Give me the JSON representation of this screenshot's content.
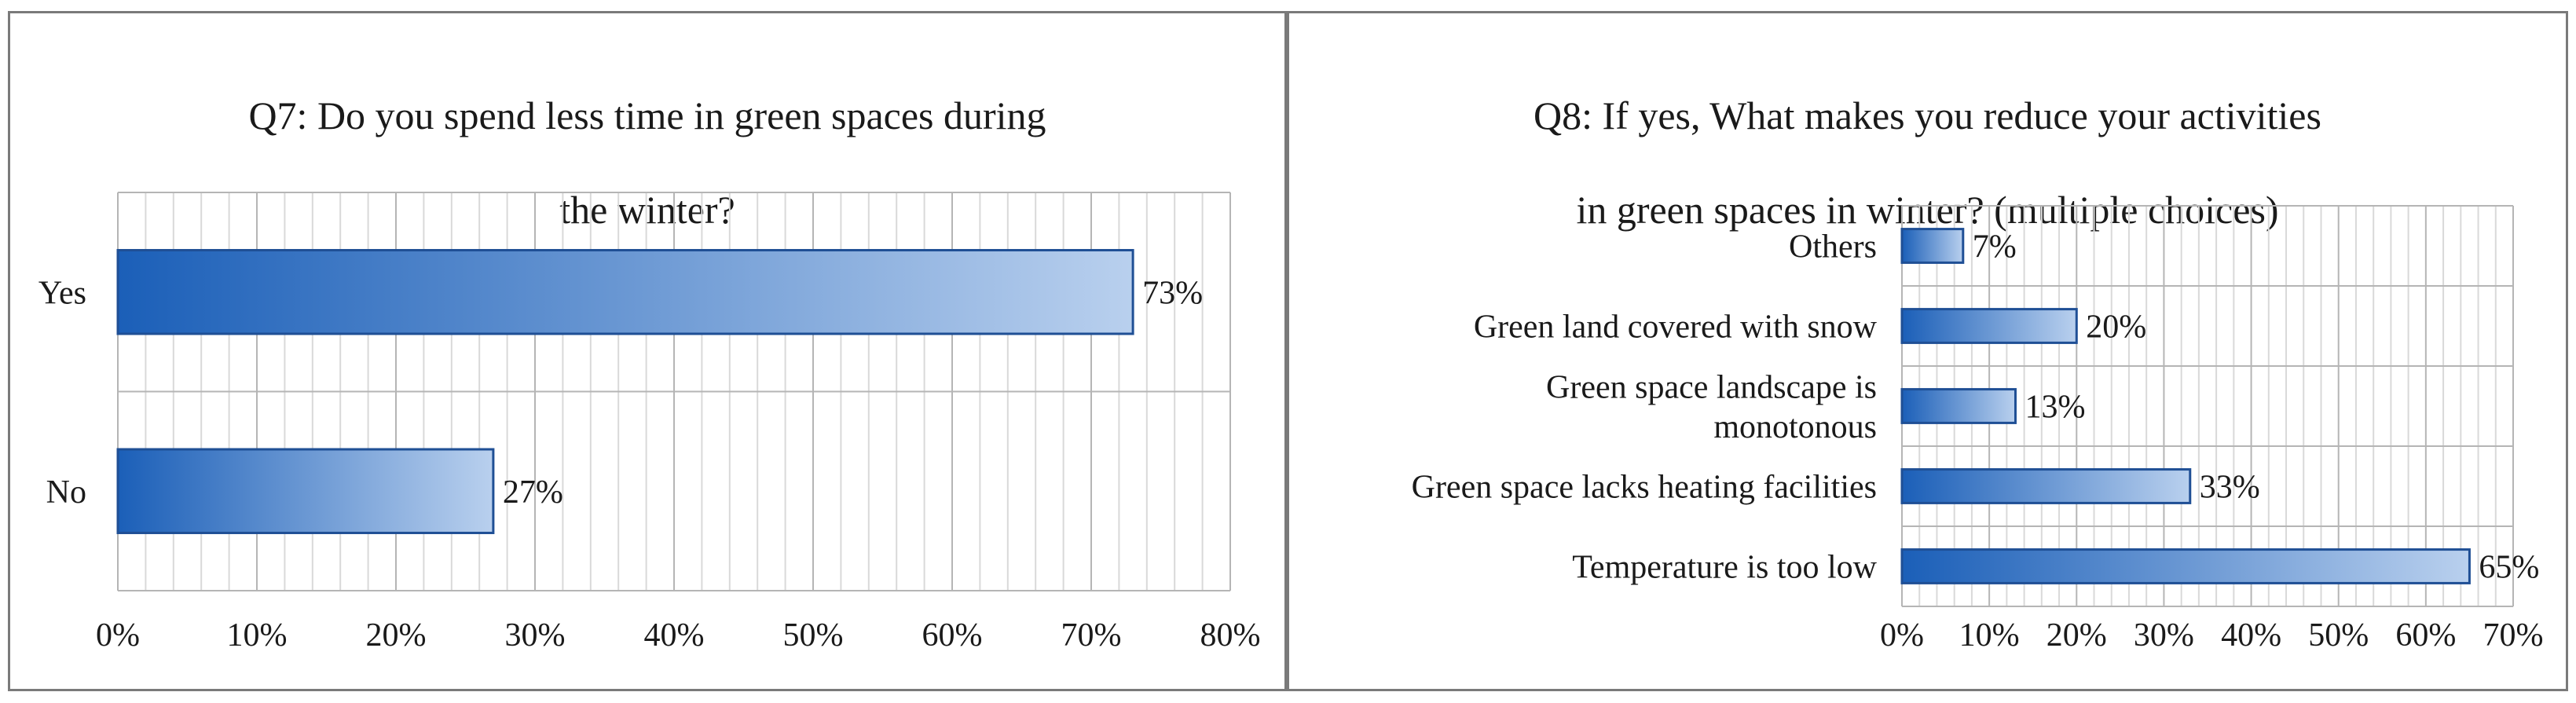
{
  "chart_data": [
    {
      "type": "bar",
      "orientation": "horizontal",
      "title": "Q7: Do you spend less time in green spaces during the winter?",
      "title_lines": [
        "Q7: Do you spend less time in green spaces during",
        "the winter?"
      ],
      "categories": [
        "Yes",
        "No"
      ],
      "values": [
        73,
        27
      ],
      "value_labels": [
        "73%",
        "27%"
      ],
      "xlim": [
        0,
        80
      ],
      "xticks": [
        0,
        10,
        20,
        30,
        40,
        50,
        60,
        70,
        80
      ],
      "xtick_labels": [
        "0%",
        "10%",
        "20%",
        "30%",
        "40%",
        "50%",
        "60%",
        "70%",
        "80%"
      ],
      "xlabel": "",
      "ylabel": "",
      "grid": true,
      "legend": "none"
    },
    {
      "type": "bar",
      "orientation": "horizontal",
      "title": "Q8: If yes, What makes you reduce your activities in green spaces in winter? (multiple choices)",
      "title_lines": [
        "Q8: If yes, What makes you reduce your activities",
        "in green spaces in winter? (multiple choices)"
      ],
      "categories": [
        "Others",
        "Green land covered with snow",
        "Green space landscape is monotonous",
        "Green space lacks heating facilities",
        "Temperature is too low"
      ],
      "category_lines": [
        [
          "Others"
        ],
        [
          "Green land covered with snow"
        ],
        [
          "Green space landscape is",
          "monotonous"
        ],
        [
          "Green space lacks heating facilities"
        ],
        [
          "Temperature is too low"
        ]
      ],
      "values": [
        7,
        20,
        13,
        33,
        65
      ],
      "value_labels": [
        "7%",
        "20%",
        "13%",
        "33%",
        "65%"
      ],
      "xlim": [
        0,
        70
      ],
      "xticks": [
        0,
        10,
        20,
        30,
        40,
        50,
        60,
        70
      ],
      "xtick_labels": [
        "0%",
        "10%",
        "20%",
        "30%",
        "40%",
        "50%",
        "60%",
        "70%"
      ],
      "xlabel": "",
      "ylabel": "",
      "grid": true,
      "legend": "none"
    }
  ],
  "colors": {
    "bar_dark": "#1b5fb8",
    "bar_light": "#b9d0ee",
    "bar_border": "#1f4f95",
    "grid_major": "#b5b5b5",
    "grid_minor": "#d9d9d9",
    "panel_border": "#7a7a7a"
  }
}
